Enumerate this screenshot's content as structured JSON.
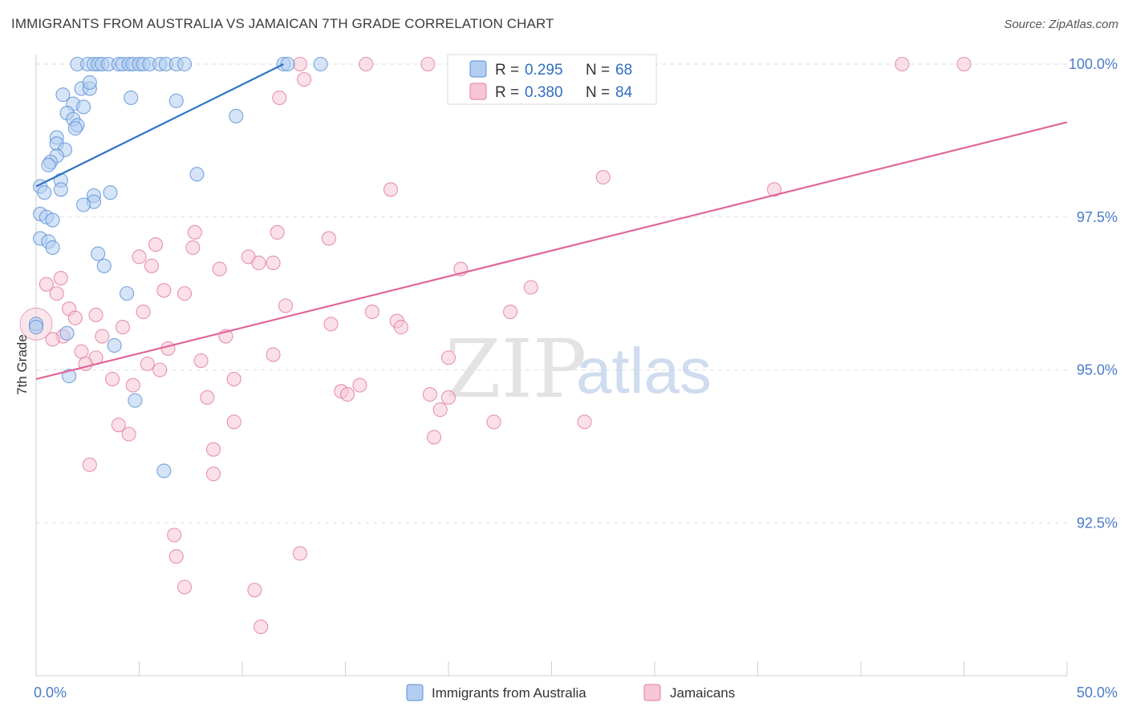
{
  "title": "IMMIGRANTS FROM AUSTRALIA VS JAMAICAN 7TH GRADE CORRELATION CHART",
  "source": "Source: ZipAtlas.com",
  "watermark": {
    "zip": "ZIP",
    "atlas": "atlas"
  },
  "chart_data": {
    "type": "scatter",
    "title": "IMMIGRANTS FROM AUSTRALIA VS JAMAICAN 7TH GRADE CORRELATION CHART",
    "xlabel": "",
    "ylabel": "7th Grade",
    "xlim": [
      0,
      50
    ],
    "ylim": [
      90.0,
      100.25
    ],
    "x_tick_labels": {
      "min": "0.0%",
      "max": "50.0%"
    },
    "y_ticks": [
      {
        "value": 100.0,
        "label": "100.0%"
      },
      {
        "value": 97.5,
        "label": "97.5%"
      },
      {
        "value": 95.0,
        "label": "95.0%"
      },
      {
        "value": 92.5,
        "label": "92.5%"
      }
    ],
    "series": [
      {
        "name": "Immigrants from Australia",
        "color": "#5b8fd6",
        "fill": "#b3cdf0",
        "R": "0.295",
        "N": "68",
        "trend": {
          "x": [
            0,
            12
          ],
          "y": [
            98.0,
            100.0
          ]
        },
        "points": [
          [
            2.0,
            100.0
          ],
          [
            2.5,
            100.0
          ],
          [
            2.8,
            100.0
          ],
          [
            3.0,
            100.0
          ],
          [
            3.2,
            100.0
          ],
          [
            3.5,
            100.0
          ],
          [
            4.0,
            100.0
          ],
          [
            4.2,
            100.0
          ],
          [
            4.5,
            100.0
          ],
          [
            4.7,
            100.0
          ],
          [
            5.0,
            100.0
          ],
          [
            5.2,
            100.0
          ],
          [
            5.5,
            100.0
          ],
          [
            6.0,
            100.0
          ],
          [
            6.3,
            100.0
          ],
          [
            6.8,
            100.0
          ],
          [
            7.2,
            100.0
          ],
          [
            12.0,
            100.0
          ],
          [
            12.2,
            100.0
          ],
          [
            13.8,
            100.0
          ],
          [
            1.3,
            99.5
          ],
          [
            2.2,
            99.6
          ],
          [
            2.6,
            99.6
          ],
          [
            2.6,
            99.7
          ],
          [
            4.6,
            99.45
          ],
          [
            6.8,
            99.4
          ],
          [
            1.8,
            99.35
          ],
          [
            2.3,
            99.3
          ],
          [
            1.5,
            99.2
          ],
          [
            1.8,
            99.1
          ],
          [
            9.7,
            99.15
          ],
          [
            2.0,
            99.0
          ],
          [
            1.9,
            98.95
          ],
          [
            1.0,
            98.8
          ],
          [
            1.0,
            98.7
          ],
          [
            1.4,
            98.6
          ],
          [
            1.0,
            98.5
          ],
          [
            0.7,
            98.4
          ],
          [
            0.6,
            98.35
          ],
          [
            7.8,
            98.2
          ],
          [
            1.2,
            98.1
          ],
          [
            0.2,
            98.0
          ],
          [
            0.4,
            97.9
          ],
          [
            1.2,
            97.95
          ],
          [
            2.8,
            97.85
          ],
          [
            3.6,
            97.9
          ],
          [
            2.8,
            97.75
          ],
          [
            2.3,
            97.7
          ],
          [
            0.2,
            97.55
          ],
          [
            0.5,
            97.5
          ],
          [
            0.8,
            97.45
          ],
          [
            0.2,
            97.15
          ],
          [
            0.6,
            97.1
          ],
          [
            0.8,
            97.0
          ],
          [
            3.0,
            96.9
          ],
          [
            3.3,
            96.7
          ],
          [
            4.4,
            96.25
          ],
          [
            0.0,
            95.75
          ],
          [
            0.0,
            95.7
          ],
          [
            1.5,
            95.6
          ],
          [
            3.8,
            95.4
          ],
          [
            1.6,
            94.9
          ],
          [
            4.8,
            94.5
          ],
          [
            6.2,
            93.35
          ]
        ]
      },
      {
        "name": "Jamaicans",
        "color": "#e07aa0",
        "fill": "#f7c6d6",
        "R": "0.380",
        "N": "84",
        "trend": {
          "x": [
            0,
            50
          ],
          "y": [
            94.85,
            99.05
          ]
        },
        "points": [
          [
            12.8,
            100.0
          ],
          [
            16.0,
            100.0
          ],
          [
            19.0,
            100.0
          ],
          [
            27.0,
            100.0
          ],
          [
            42.0,
            100.0
          ],
          [
            45.0,
            100.0
          ],
          [
            13.0,
            99.75
          ],
          [
            11.8,
            99.45
          ],
          [
            27.5,
            98.15
          ],
          [
            17.2,
            97.95
          ],
          [
            35.8,
            97.95
          ],
          [
            7.7,
            97.25
          ],
          [
            11.7,
            97.25
          ],
          [
            14.2,
            97.15
          ],
          [
            5.8,
            97.05
          ],
          [
            7.6,
            97.0
          ],
          [
            10.3,
            96.85
          ],
          [
            10.8,
            96.75
          ],
          [
            11.5,
            96.75
          ],
          [
            5.0,
            96.85
          ],
          [
            5.6,
            96.7
          ],
          [
            8.9,
            96.65
          ],
          [
            20.6,
            96.65
          ],
          [
            1.2,
            96.5
          ],
          [
            0.5,
            96.4
          ],
          [
            6.2,
            96.3
          ],
          [
            1.0,
            96.25
          ],
          [
            7.2,
            96.25
          ],
          [
            24.0,
            96.35
          ],
          [
            12.1,
            96.05
          ],
          [
            1.6,
            96.0
          ],
          [
            2.9,
            95.9
          ],
          [
            5.2,
            95.95
          ],
          [
            16.3,
            95.95
          ],
          [
            23.0,
            95.95
          ],
          [
            1.9,
            95.85
          ],
          [
            14.3,
            95.75
          ],
          [
            17.5,
            95.8
          ],
          [
            17.7,
            95.7
          ],
          [
            4.2,
            95.7
          ],
          [
            3.2,
            95.55
          ],
          [
            9.2,
            95.55
          ],
          [
            1.3,
            95.55
          ],
          [
            0.8,
            95.5
          ],
          [
            6.4,
            95.35
          ],
          [
            2.2,
            95.3
          ],
          [
            11.5,
            95.25
          ],
          [
            2.9,
            95.2
          ],
          [
            20.0,
            95.2
          ],
          [
            8.0,
            95.15
          ],
          [
            2.4,
            95.1
          ],
          [
            5.4,
            95.1
          ],
          [
            6.0,
            95.0
          ],
          [
            9.6,
            94.85
          ],
          [
            3.7,
            94.85
          ],
          [
            4.7,
            94.75
          ],
          [
            15.7,
            94.75
          ],
          [
            14.8,
            94.65
          ],
          [
            15.1,
            94.6
          ],
          [
            19.1,
            94.6
          ],
          [
            20.0,
            94.55
          ],
          [
            8.3,
            94.55
          ],
          [
            19.6,
            94.35
          ],
          [
            22.2,
            94.15
          ],
          [
            26.6,
            94.15
          ],
          [
            9.6,
            94.15
          ],
          [
            4.0,
            94.1
          ],
          [
            4.5,
            93.95
          ],
          [
            19.3,
            93.9
          ],
          [
            8.6,
            93.7
          ],
          [
            2.6,
            93.45
          ],
          [
            8.6,
            93.3
          ],
          [
            6.7,
            92.3
          ],
          [
            6.8,
            91.95
          ],
          [
            12.8,
            92.0
          ],
          [
            7.2,
            91.45
          ],
          [
            10.6,
            91.4
          ],
          [
            10.9,
            90.8
          ]
        ],
        "big_points": [
          [
            0.0,
            95.75
          ]
        ]
      }
    ]
  }
}
